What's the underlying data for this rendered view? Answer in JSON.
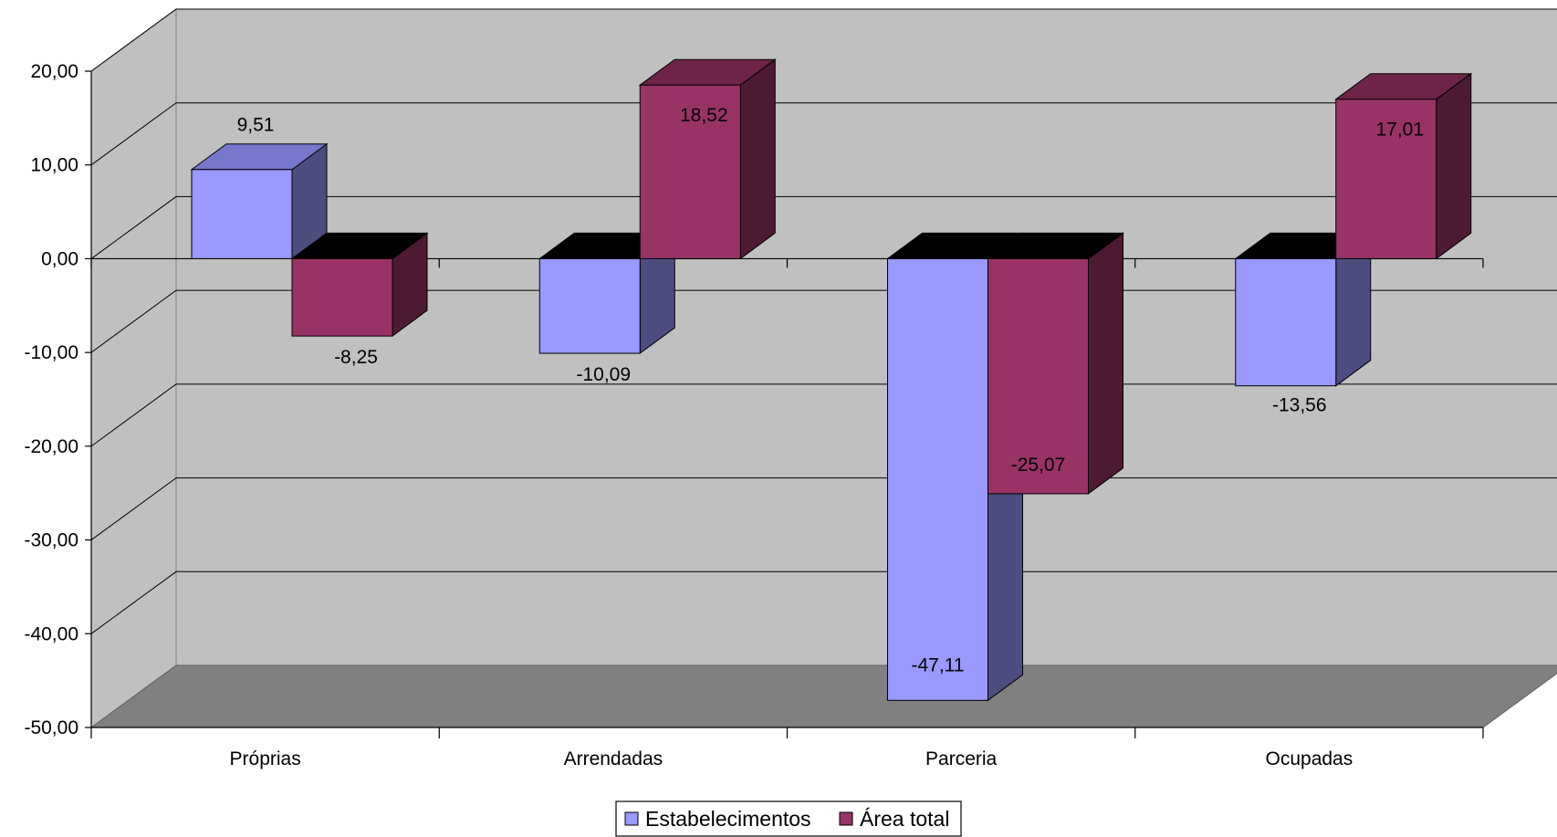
{
  "chart_data": {
    "type": "bar",
    "style": "3d-clustered-column",
    "categories": [
      "Próprias",
      "Arrendadas",
      "Parceria",
      "Ocupadas"
    ],
    "series": [
      {
        "name": "Estabelecimentos",
        "values": [
          9.51,
          -10.09,
          -47.11,
          -13.56
        ],
        "labels": [
          "9,51",
          "-10,09",
          "-47,11",
          "-13,56"
        ],
        "color": "#9999FF",
        "side_color": "#4D4D80",
        "top_color": "#7777CC"
      },
      {
        "name": "Área total",
        "values": [
          -8.25,
          18.52,
          -25.07,
          17.01
        ],
        "labels": [
          "-8,25",
          "18,52",
          "-25,07",
          "17,01"
        ],
        "color": "#993366",
        "side_color": "#4D1A33",
        "top_color": "#6E2449"
      }
    ],
    "y_ticks": [
      20,
      10,
      0,
      -10,
      -20,
      -30,
      -40,
      -50
    ],
    "y_tick_labels": [
      "20,00",
      "10,00",
      "0,00",
      "-10,00",
      "-20,00",
      "-30,00",
      "-40,00",
      "-50,00"
    ],
    "ylim": [
      -50,
      20
    ],
    "grid": true,
    "legend_position": "bottom",
    "title": "",
    "xlabel": "",
    "ylabel": "",
    "colors": {
      "wall": "#C0C0C0",
      "floor": "#808080",
      "zero_cap": "#000000"
    }
  }
}
